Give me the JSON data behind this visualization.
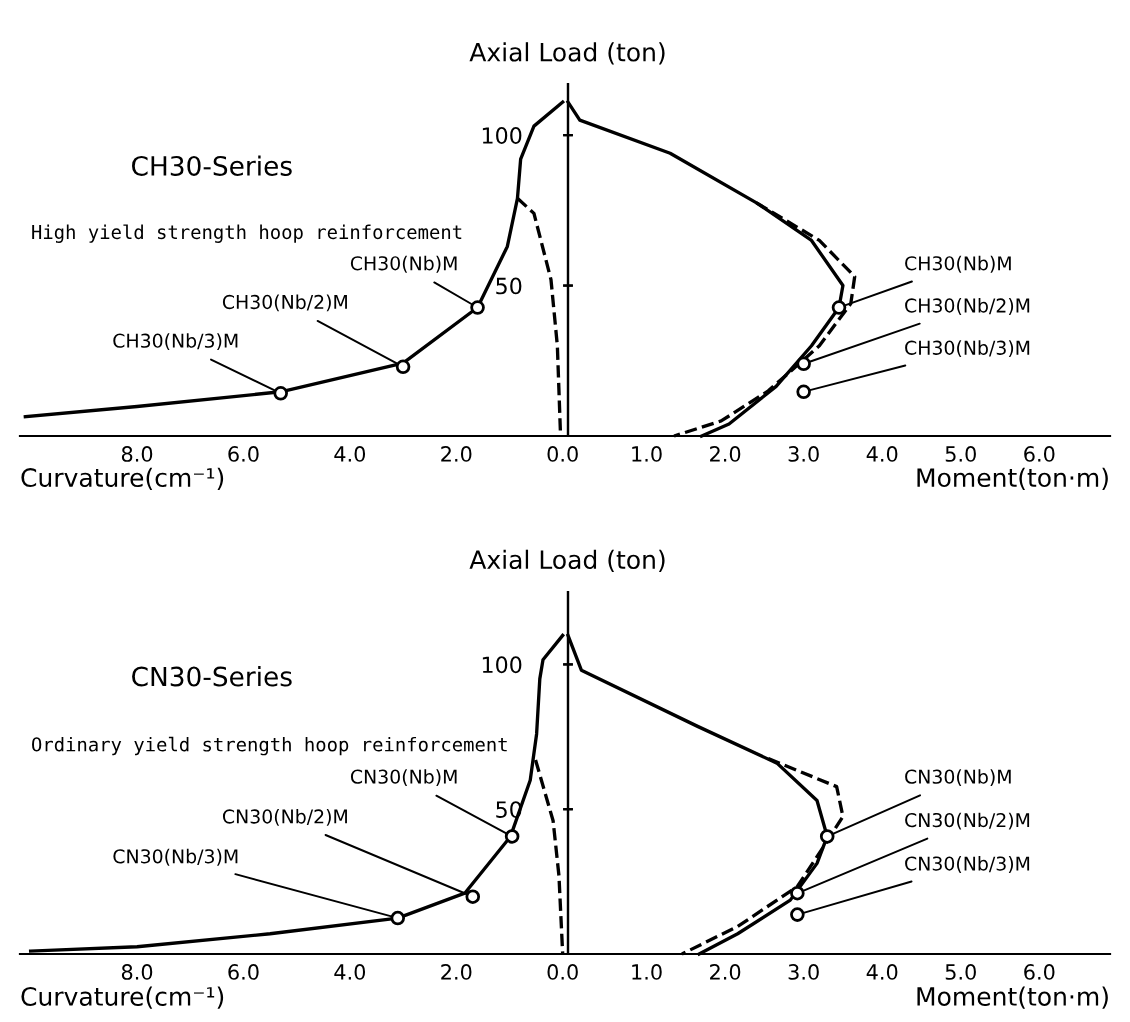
{
  "chart_data": [
    {
      "type": "line",
      "title": "CH30-Series",
      "subtitle": "High yield strength hoop reinforcement",
      "xlabel": "Curvature(cm⁻¹)",
      "xlim": [
        10.2,
        -0.1
      ],
      "ylim": [
        0,
        117
      ],
      "xticks": [
        {
          "value": 8,
          "label": "8.0"
        },
        {
          "value": 6,
          "label": "6.0"
        },
        {
          "value": 4,
          "label": "4.0"
        },
        {
          "value": 2,
          "label": "2.0"
        },
        {
          "value": 0,
          "label": "0.0"
        }
      ],
      "yticks": [
        50,
        100
      ],
      "grid": false,
      "series": [
        {
          "line_style": "solid",
          "color": "#000000",
          "x": [
            10.1,
            8.0,
            5.3,
            3.0,
            1.6,
            1.04,
            0.85,
            0.79,
            0.54,
            0.0
          ],
          "values": [
            6.4,
            9.8,
            14.7,
            24.2,
            42.7,
            63,
            79,
            92,
            103,
            111
          ]
        },
        {
          "line_style": "dashed",
          "color": "#000000",
          "x": [
            0.85,
            0.54,
            0.22,
            0.1,
            0.04
          ],
          "values": [
            79,
            74,
            52,
            30,
            0
          ]
        },
        {
          "type": "scatter",
          "marker": "circle",
          "color": "#000000",
          "x": [
            1.6,
            3.0,
            5.3
          ],
          "values": [
            42.7,
            23,
            14.2
          ]
        }
      ],
      "annotations": [
        {
          "text": "CH30(Nb)M",
          "x": 1.6,
          "y": 42.7
        },
        {
          "text": "CH30(Nb/2)M",
          "x": 3.0,
          "y": 23
        },
        {
          "text": "CH30(Nb/3)M",
          "x": 5.3,
          "y": 14.2
        }
      ]
    },
    {
      "type": "line",
      "ylabel": "Axial Load (ton)",
      "xlabel": "Moment(ton·m)",
      "xlim": [
        0,
        6.9
      ],
      "ylim": [
        0,
        117
      ],
      "tick_labels": "x",
      "xticks": [
        {
          "value": 1,
          "label": "1.0"
        },
        {
          "value": 2,
          "label": "2.0"
        },
        {
          "value": 3,
          "label": "3.0"
        },
        {
          "value": 4,
          "label": "4.0"
        },
        {
          "value": 5,
          "label": "5.0"
        },
        {
          "value": 6,
          "label": "6.0"
        }
      ],
      "yticks": [
        50,
        100
      ],
      "grid": false,
      "series": [
        {
          "line_style": "solid",
          "color": "#000000",
          "x": [
            0,
            0.15,
            1.3,
            2.4,
            3.1,
            3.5,
            3.45,
            3.1,
            2.65,
            2.05,
            1.7
          ],
          "values": [
            111,
            105,
            94,
            77.5,
            65,
            50,
            42.7,
            30,
            16.5,
            4,
            0
          ]
        },
        {
          "line_style": "dashed",
          "color": "#000000",
          "x": [
            2.4,
            3.2,
            3.65,
            3.6,
            3.2,
            2.55,
            1.95,
            1.35
          ],
          "values": [
            77.5,
            65,
            53,
            44,
            30,
            15,
            5,
            0
          ]
        },
        {
          "type": "scatter",
          "marker": "circle",
          "color": "#000000",
          "x": [
            3.45,
            3.0,
            3.0
          ],
          "values": [
            42.7,
            24,
            14.7
          ]
        }
      ],
      "annotations": [
        {
          "text": "CH30(Nb)M",
          "x": 3.45,
          "y": 42.7
        },
        {
          "text": "CH30(Nb/2)M",
          "x": 3.0,
          "y": 24
        },
        {
          "text": "CH30(Nb/3)M",
          "x": 3.0,
          "y": 14.7
        }
      ]
    },
    {
      "type": "line",
      "title": "CN30-Series",
      "subtitle": "Ordinary yield strength hoop reinforcement",
      "xlabel": "Curvature(cm⁻¹)",
      "xlim": [
        10.2,
        -0.1
      ],
      "ylim": [
        0,
        125
      ],
      "xticks": [
        {
          "value": 8,
          "label": "8.0"
        },
        {
          "value": 6,
          "label": "6.0"
        },
        {
          "value": 4,
          "label": "4.0"
        },
        {
          "value": 2,
          "label": "2.0"
        },
        {
          "value": 0,
          "label": "0.0"
        }
      ],
      "yticks": [
        50,
        100
      ],
      "grid": false,
      "series": [
        {
          "line_style": "solid",
          "color": "#000000",
          "x": [
            10.0,
            8.0,
            5.5,
            3.1,
            1.84,
            0.98,
            0.61,
            0.49,
            0.43,
            0.37,
            0.0
          ],
          "values": [
            1,
            2.5,
            7,
            12.4,
            21,
            40.6,
            60,
            76,
            95,
            101.6,
            110
          ]
        },
        {
          "line_style": "dashed",
          "color": "#000000",
          "x": [
            0.51,
            0.18,
            0.07,
            0.0
          ],
          "values": [
            67,
            46,
            27,
            0
          ]
        },
        {
          "type": "scatter",
          "marker": "circle",
          "color": "#000000",
          "x": [
            0.95,
            1.69,
            3.1
          ],
          "values": [
            40.6,
            19.8,
            12.4
          ]
        }
      ],
      "annotations": [
        {
          "text": "CN30(Nb)M",
          "x": 0.95,
          "y": 40.6
        },
        {
          "text": "CN30(Nb/2)M",
          "x": 1.69,
          "y": 19.8
        },
        {
          "text": "CN30(Nb/3)M",
          "x": 3.1,
          "y": 12.4
        }
      ]
    },
    {
      "type": "line",
      "ylabel": "Axial Load (ton)",
      "xlabel": "Moment(ton·m)",
      "xlim": [
        0,
        6.9
      ],
      "ylim": [
        0,
        125
      ],
      "tick_labels": "x",
      "xticks": [
        {
          "value": 1,
          "label": "1.0"
        },
        {
          "value": 2,
          "label": "2.0"
        },
        {
          "value": 3,
          "label": "3.0"
        },
        {
          "value": 4,
          "label": "4.0"
        },
        {
          "value": 5,
          "label": "5.0"
        },
        {
          "value": 6,
          "label": "6.0"
        }
      ],
      "yticks": [
        50,
        100
      ],
      "grid": false,
      "series": [
        {
          "line_style": "solid",
          "color": "#000000",
          "x": [
            0,
            0.17,
            1.65,
            2.66,
            3.17,
            3.3,
            3.17,
            2.83,
            2.16,
            1.67
          ],
          "values": [
            110,
            98,
            78.6,
            65.9,
            53,
            40.6,
            31.3,
            18.6,
            7,
            0
          ]
        },
        {
          "line_style": "dashed",
          "color": "#000000",
          "x": [
            2.55,
            3.42,
            3.5,
            3.3,
            2.92,
            2.16,
            1.45
          ],
          "values": [
            67.5,
            57.8,
            47.5,
            39,
            23.3,
            9.5,
            0
          ]
        },
        {
          "type": "scatter",
          "marker": "circle",
          "color": "#000000",
          "x": [
            3.3,
            2.92,
            2.92
          ],
          "values": [
            40.6,
            21,
            13.6
          ]
        }
      ],
      "annotations": [
        {
          "text": "CN30(Nb)M",
          "x": 3.3,
          "y": 40.6
        },
        {
          "text": "CN30(Nb/2)M",
          "x": 2.92,
          "y": 21
        },
        {
          "text": "CN30(Nb/3)M",
          "x": 2.92,
          "y": 13.6
        }
      ]
    }
  ]
}
